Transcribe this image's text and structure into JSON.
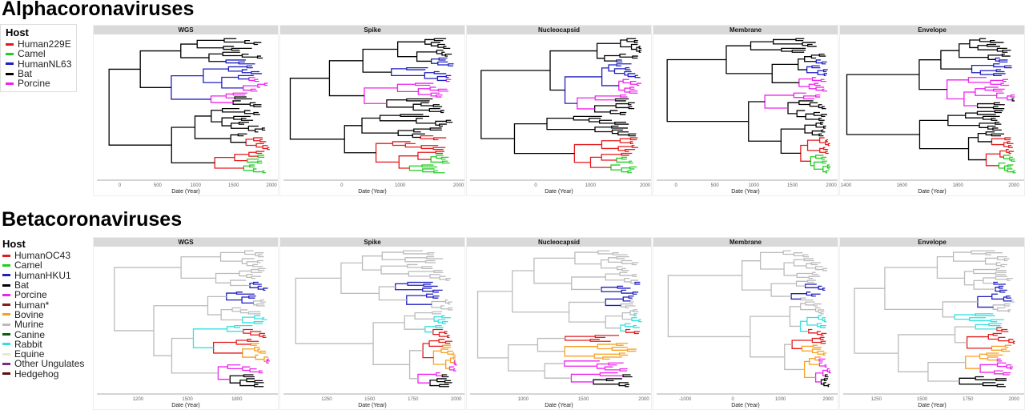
{
  "sections": [
    {
      "title": "Alphacoronaviruses",
      "legend": {
        "title": "Host",
        "items": [
          {
            "label": "Human229E",
            "color": "#e31a1c"
          },
          {
            "label": "Camel",
            "color": "#22cc22"
          },
          {
            "label": "HumanNL63",
            "color": "#1f1fbf"
          },
          {
            "label": "Bat",
            "color": "#000000"
          },
          {
            "label": "Porcine",
            "color": "#ee22ee"
          }
        ]
      },
      "panels": [
        {
          "title": "WGS",
          "xlabel": "Date (Year)",
          "ticks": [
            "0",
            "500",
            "1000",
            "1500",
            "2000"
          ],
          "range": [
            -300,
            2020
          ],
          "tickvals": [
            0,
            500,
            1000,
            1500,
            2000
          ]
        },
        {
          "title": "Spike",
          "xlabel": "Date (Year)",
          "ticks": [
            "0",
            "1000",
            "2000"
          ],
          "range": [
            -1000,
            2020
          ],
          "tickvals": [
            0,
            1000,
            2000
          ]
        },
        {
          "title": "Nucleocapsid",
          "xlabel": "Date (Year)",
          "ticks": [
            "0",
            "1000",
            "2000"
          ],
          "range": [
            -1200,
            2020
          ],
          "tickvals": [
            0,
            1000,
            2000
          ]
        },
        {
          "title": "Membrane",
          "xlabel": "Date (Year)",
          "ticks": [
            "0",
            "500",
            "1000",
            "1500",
            "2000"
          ],
          "range": [
            -250,
            2020
          ],
          "tickvals": [
            0,
            500,
            1000,
            1500,
            2000
          ]
        },
        {
          "title": "Envelope",
          "xlabel": "Date (Year)",
          "ticks": [
            "1400",
            "1600",
            "1800",
            "2000"
          ],
          "range": [
            1390,
            2020
          ],
          "tickvals": [
            1400,
            1600,
            1800,
            2000
          ]
        }
      ]
    },
    {
      "title": "Betacoronaviruses",
      "legend": {
        "title": "Host",
        "items": [
          {
            "label": "HumanOC43",
            "color": "#e31a1c"
          },
          {
            "label": "Camel",
            "color": "#22cc22"
          },
          {
            "label": "HumanHKU1",
            "color": "#1f1fbf"
          },
          {
            "label": "Bat",
            "color": "#000000"
          },
          {
            "label": "Porcine",
            "color": "#ee22ee"
          },
          {
            "label": "Human*",
            "color": "#8b1a1a"
          },
          {
            "label": "Bovine",
            "color": "#f5a020"
          },
          {
            "label": "Murine",
            "color": "#bbbbbb"
          },
          {
            "label": "Canine",
            "color": "#0b5e0b"
          },
          {
            "label": "Rabbit",
            "color": "#33e0e0"
          },
          {
            "label": "Equine",
            "color": "#e8e8d8"
          },
          {
            "label": "Other Ungulates",
            "color": "#7b2a8b"
          },
          {
            "label": "Hedgehog",
            "color": "#5a1010"
          }
        ]
      },
      "panels": [
        {
          "title": "WGS",
          "xlabel": "Date (Year)",
          "ticks": [
            "1200",
            "1500",
            "1800"
          ],
          "range": [
            950,
            2020
          ],
          "tickvals": [
            1200,
            1500,
            1800
          ]
        },
        {
          "title": "Spike",
          "xlabel": "Date (Year)",
          "ticks": [
            "1250",
            "1500",
            "1750",
            "2000"
          ],
          "range": [
            1000,
            2020
          ],
          "tickvals": [
            1250,
            1500,
            1750,
            2000
          ]
        },
        {
          "title": "Nucleocapsid",
          "xlabel": "Date (Year)",
          "ticks": [
            "1000",
            "1500",
            "2000"
          ],
          "range": [
            560,
            2020
          ],
          "tickvals": [
            1000,
            1500,
            2000
          ]
        },
        {
          "title": "Membrane",
          "xlabel": "Date (Year)",
          "ticks": [
            "-1000",
            "0",
            "1000",
            "2000"
          ],
          "range": [
            -1600,
            2100
          ],
          "tickvals": [
            -1000,
            0,
            1000,
            2000
          ]
        },
        {
          "title": "Envelope",
          "xlabel": "Date (Year)",
          "ticks": [
            "1250",
            "1500",
            "1750",
            "2000"
          ],
          "range": [
            1070,
            2030
          ],
          "tickvals": [
            1250,
            1500,
            1750,
            2000
          ]
        }
      ]
    }
  ]
}
